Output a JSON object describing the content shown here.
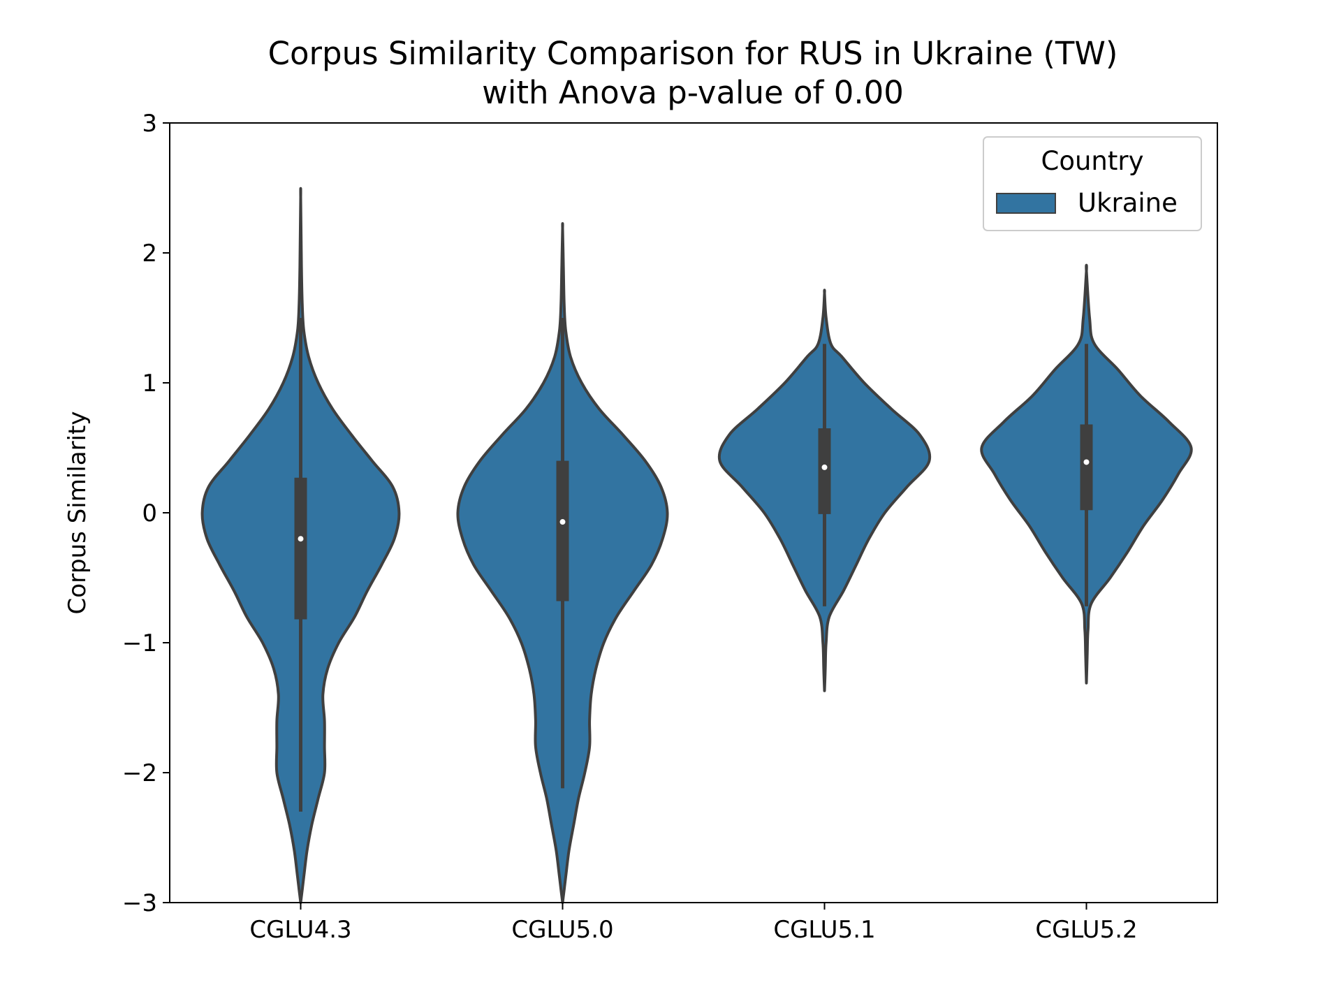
{
  "chart_data": {
    "type": "violin",
    "title_line1": "Corpus Similarity Comparison for RUS in Ukraine (TW)",
    "title_line2": "with Anova p-value of 0.00",
    "xlabel": "",
    "ylabel": "Corpus Similarity",
    "ylim": [
      -3,
      3
    ],
    "yticks": [
      -3,
      -2,
      -1,
      0,
      1,
      2,
      3
    ],
    "ytick_labels": [
      "−3",
      "−2",
      "−1",
      "0",
      "1",
      "2",
      "3"
    ],
    "categories": [
      "CGLU4.3",
      "CGLU5.0",
      "CGLU5.1",
      "CGLU5.2"
    ],
    "legend": {
      "title": "Country",
      "placement": "top-right",
      "entries": [
        {
          "label": "Ukraine",
          "color": "#3274a1"
        }
      ]
    },
    "series": [
      {
        "name": "Ukraine",
        "color": "#3274a1",
        "violins": [
          {
            "category": "CGLU4.3",
            "median": -0.2,
            "q1": -0.82,
            "q3": 0.27,
            "whisker_low": -2.3,
            "whisker_high": 1.5,
            "ymin": -3.0,
            "ymax": 2.43,
            "density": [
              [
                -3.0,
                0.0
              ],
              [
                -2.9,
                0.01
              ],
              [
                -2.8,
                0.02
              ],
              [
                -2.6,
                0.04
              ],
              [
                -2.4,
                0.07
              ],
              [
                -2.2,
                0.11
              ],
              [
                -2.0,
                0.15
              ],
              [
                -1.8,
                0.15
              ],
              [
                -1.6,
                0.15
              ],
              [
                -1.4,
                0.14
              ],
              [
                -1.2,
                0.17
              ],
              [
                -1.0,
                0.24
              ],
              [
                -0.8,
                0.34
              ],
              [
                -0.6,
                0.42
              ],
              [
                -0.4,
                0.51
              ],
              [
                -0.2,
                0.59
              ],
              [
                0.0,
                0.62
              ],
              [
                0.2,
                0.58
              ],
              [
                0.4,
                0.45
              ],
              [
                0.6,
                0.32
              ],
              [
                0.8,
                0.2
              ],
              [
                1.0,
                0.11
              ],
              [
                1.2,
                0.05
              ],
              [
                1.4,
                0.02
              ],
              [
                1.6,
                0.01
              ],
              [
                1.9,
                0.005
              ],
              [
                2.43,
                0.0
              ]
            ]
          },
          {
            "category": "CGLU5.0",
            "median": -0.07,
            "q1": -0.68,
            "q3": 0.4,
            "whisker_low": -2.12,
            "whisker_high": 1.5,
            "ymin": -3.0,
            "ymax": 2.19,
            "density": [
              [
                -3.0,
                0.0
              ],
              [
                -2.9,
                0.01
              ],
              [
                -2.8,
                0.02
              ],
              [
                -2.6,
                0.04
              ],
              [
                -2.4,
                0.07
              ],
              [
                -2.2,
                0.1
              ],
              [
                -2.0,
                0.14
              ],
              [
                -1.8,
                0.17
              ],
              [
                -1.6,
                0.17
              ],
              [
                -1.4,
                0.18
              ],
              [
                -1.2,
                0.21
              ],
              [
                -1.0,
                0.26
              ],
              [
                -0.8,
                0.34
              ],
              [
                -0.6,
                0.45
              ],
              [
                -0.4,
                0.56
              ],
              [
                -0.2,
                0.63
              ],
              [
                0.0,
                0.66
              ],
              [
                0.2,
                0.62
              ],
              [
                0.4,
                0.52
              ],
              [
                0.6,
                0.38
              ],
              [
                0.8,
                0.23
              ],
              [
                1.0,
                0.12
              ],
              [
                1.2,
                0.05
              ],
              [
                1.4,
                0.02
              ],
              [
                1.6,
                0.01
              ],
              [
                1.9,
                0.005
              ],
              [
                2.19,
                0.0
              ]
            ]
          },
          {
            "category": "CGLU5.1",
            "median": 0.35,
            "q1": -0.01,
            "q3": 0.65,
            "whisker_low": -0.72,
            "whisker_high": 1.3,
            "ymin": -1.37,
            "ymax": 1.69,
            "density": [
              [
                -1.37,
                0.0
              ],
              [
                -1.2,
                0.005
              ],
              [
                -1.0,
                0.01
              ],
              [
                -0.8,
                0.03
              ],
              [
                -0.6,
                0.12
              ],
              [
                -0.4,
                0.2
              ],
              [
                -0.2,
                0.28
              ],
              [
                0.0,
                0.38
              ],
              [
                0.2,
                0.52
              ],
              [
                0.4,
                0.66
              ],
              [
                0.6,
                0.6
              ],
              [
                0.8,
                0.42
              ],
              [
                1.0,
                0.25
              ],
              [
                1.2,
                0.11
              ],
              [
                1.3,
                0.04
              ],
              [
                1.5,
                0.01
              ],
              [
                1.69,
                0.0
              ]
            ]
          },
          {
            "category": "CGLU5.2",
            "median": 0.39,
            "q1": 0.02,
            "q3": 0.68,
            "whisker_low": -0.72,
            "whisker_high": 1.3,
            "ymin": -1.31,
            "ymax": 1.86,
            "density": [
              [
                -1.31,
                0.0
              ],
              [
                -1.1,
                0.005
              ],
              [
                -0.9,
                0.01
              ],
              [
                -0.7,
                0.03
              ],
              [
                -0.5,
                0.15
              ],
              [
                -0.3,
                0.26
              ],
              [
                -0.1,
                0.36
              ],
              [
                0.1,
                0.48
              ],
              [
                0.3,
                0.58
              ],
              [
                0.5,
                0.66
              ],
              [
                0.7,
                0.52
              ],
              [
                0.9,
                0.34
              ],
              [
                1.1,
                0.2
              ],
              [
                1.3,
                0.05
              ],
              [
                1.5,
                0.02
              ],
              [
                1.86,
                0.0
              ]
            ]
          }
        ]
      }
    ]
  }
}
